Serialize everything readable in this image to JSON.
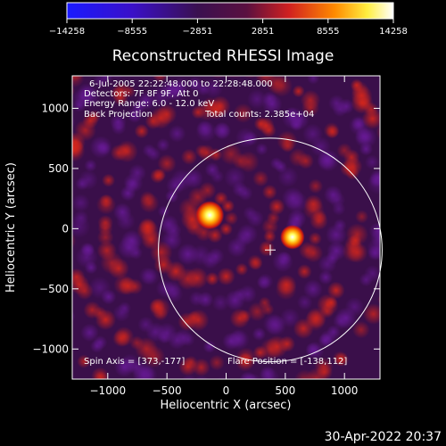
{
  "chart_data": {
    "type": "heatmap",
    "title": "Reconstructed RHESSI Image",
    "xlabel": "Heliocentric X (arcsec)",
    "ylabel": "Heliocentric Y (arcsec)",
    "xlim": [
      -1300,
      1300
    ],
    "ylim": [
      -1250,
      1270
    ],
    "xticks": [
      -1000,
      -500,
      0,
      500,
      1000
    ],
    "yticks": [
      -1000,
      -500,
      0,
      500,
      1000
    ],
    "xtick_labels": [
      "−1000",
      "−500",
      "0",
      "500",
      "1000"
    ],
    "ytick_labels": [
      "−1000",
      "−500",
      "0",
      "500",
      "1000"
    ],
    "colorbar": {
      "min": -14258,
      "max": 14258,
      "ticks": [
        -14258,
        -8555,
        -2851,
        2851,
        8555,
        14258
      ],
      "tick_labels": [
        "−14258",
        "−8555",
        "−2851",
        "2851",
        "8555",
        "14258"
      ],
      "colormap": "blue-purple-red-yellow-white"
    },
    "sources": [
      {
        "x": -138,
        "y": 112,
        "intensity": 14258
      },
      {
        "x": 560,
        "y": -70,
        "intensity": 11000
      }
    ],
    "solar_limb_radius": 945,
    "sun_center_marker": {
      "x": 373,
      "y": -177
    },
    "annotations": {
      "time_range": "6-Jul-2005 22:22:48.000 to 22:28:48.000",
      "detectors": "Detectors: 7F 8F 9F, Att 0",
      "energy": "Energy Range: 6.0 - 12.0 keV",
      "method": "Back Projection",
      "counts": "Total counts: 2.385e+04",
      "spin_axis": "Spin Axis = [373,-177]",
      "flare_position": "Flare Position = [-138,112]"
    }
  },
  "footer": {
    "timestamp": "30-Apr-2022 20:37"
  },
  "colors": {
    "background": "#000000",
    "limb": "#ffffff",
    "map_negative": "#2a0a4a",
    "map_positive": "#c8201a",
    "map_peak": "#ffffff"
  }
}
